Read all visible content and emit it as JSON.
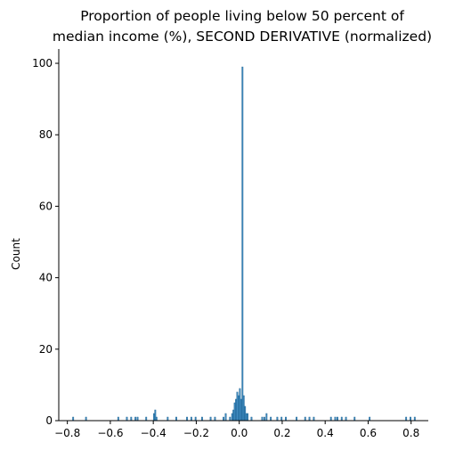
{
  "chart_data": {
    "type": "bar",
    "title_lines": [
      "Proportion of people living below 50 percent of",
      "median income (%), SECOND DERIVATIVE (normalized)"
    ],
    "xlabel": "",
    "ylabel": "Count",
    "xlim": [
      -0.84,
      0.88
    ],
    "ylim": [
      0,
      104
    ],
    "x_ticks": [
      {
        "value": -0.8,
        "label": "−0.8"
      },
      {
        "value": -0.6,
        "label": "−0.6"
      },
      {
        "value": -0.4,
        "label": "−0.4"
      },
      {
        "value": -0.2,
        "label": "−0.2"
      },
      {
        "value": 0.0,
        "label": "0.0"
      },
      {
        "value": 0.2,
        "label": "0.2"
      },
      {
        "value": 0.4,
        "label": "0.4"
      },
      {
        "value": 0.6,
        "label": "0.6"
      },
      {
        "value": 0.8,
        "label": "0.8"
      }
    ],
    "y_ticks": [
      {
        "value": 0,
        "label": "0"
      },
      {
        "value": 20,
        "label": "20"
      },
      {
        "value": 40,
        "label": "40"
      },
      {
        "value": 60,
        "label": "60"
      },
      {
        "value": 80,
        "label": "80"
      },
      {
        "value": 100,
        "label": "100"
      }
    ],
    "bar_color": "#1f77b4",
    "bar_edge_color": "#1a5f8f",
    "bins": [
      {
        "x0": -0.776,
        "x1": -0.77,
        "count": 1
      },
      {
        "x0": -0.716,
        "x1": -0.71,
        "count": 1
      },
      {
        "x0": -0.566,
        "x1": -0.56,
        "count": 1
      },
      {
        "x0": -0.526,
        "x1": -0.52,
        "count": 1
      },
      {
        "x0": -0.506,
        "x1": -0.5,
        "count": 1
      },
      {
        "x0": -0.486,
        "x1": -0.48,
        "count": 1
      },
      {
        "x0": -0.476,
        "x1": -0.47,
        "count": 1
      },
      {
        "x0": -0.436,
        "x1": -0.43,
        "count": 1
      },
      {
        "x0": -0.4,
        "x1": -0.394,
        "count": 2
      },
      {
        "x0": -0.394,
        "x1": -0.388,
        "count": 3
      },
      {
        "x0": -0.388,
        "x1": -0.382,
        "count": 1
      },
      {
        "x0": -0.336,
        "x1": -0.33,
        "count": 1
      },
      {
        "x0": -0.296,
        "x1": -0.29,
        "count": 1
      },
      {
        "x0": -0.246,
        "x1": -0.24,
        "count": 1
      },
      {
        "x0": -0.226,
        "x1": -0.22,
        "count": 1
      },
      {
        "x0": -0.206,
        "x1": -0.2,
        "count": 1
      },
      {
        "x0": -0.176,
        "x1": -0.17,
        "count": 1
      },
      {
        "x0": -0.136,
        "x1": -0.13,
        "count": 1
      },
      {
        "x0": -0.116,
        "x1": -0.11,
        "count": 1
      },
      {
        "x0": -0.076,
        "x1": -0.07,
        "count": 1
      },
      {
        "x0": -0.066,
        "x1": -0.06,
        "count": 2
      },
      {
        "x0": -0.046,
        "x1": -0.04,
        "count": 1
      },
      {
        "x0": -0.036,
        "x1": -0.03,
        "count": 2
      },
      {
        "x0": -0.03,
        "x1": -0.024,
        "count": 3
      },
      {
        "x0": -0.024,
        "x1": -0.018,
        "count": 5
      },
      {
        "x0": -0.018,
        "x1": -0.012,
        "count": 6
      },
      {
        "x0": -0.012,
        "x1": -0.006,
        "count": 8
      },
      {
        "x0": -0.006,
        "x1": 0.0,
        "count": 7
      },
      {
        "x0": 0.0,
        "x1": 0.006,
        "count": 9
      },
      {
        "x0": 0.006,
        "x1": 0.012,
        "count": 6
      },
      {
        "x0": 0.012,
        "x1": 0.018,
        "count": 99
      },
      {
        "x0": 0.018,
        "x1": 0.024,
        "count": 7
      },
      {
        "x0": 0.024,
        "x1": 0.03,
        "count": 4
      },
      {
        "x0": 0.03,
        "x1": 0.036,
        "count": 2
      },
      {
        "x0": 0.036,
        "x1": 0.042,
        "count": 2
      },
      {
        "x0": 0.054,
        "x1": 0.06,
        "count": 1
      },
      {
        "x0": 0.104,
        "x1": 0.11,
        "count": 1
      },
      {
        "x0": 0.114,
        "x1": 0.12,
        "count": 1
      },
      {
        "x0": 0.124,
        "x1": 0.13,
        "count": 2
      },
      {
        "x0": 0.144,
        "x1": 0.15,
        "count": 1
      },
      {
        "x0": 0.174,
        "x1": 0.18,
        "count": 1
      },
      {
        "x0": 0.194,
        "x1": 0.2,
        "count": 1
      },
      {
        "x0": 0.214,
        "x1": 0.22,
        "count": 1
      },
      {
        "x0": 0.264,
        "x1": 0.27,
        "count": 1
      },
      {
        "x0": 0.304,
        "x1": 0.31,
        "count": 1
      },
      {
        "x0": 0.324,
        "x1": 0.33,
        "count": 1
      },
      {
        "x0": 0.344,
        "x1": 0.35,
        "count": 1
      },
      {
        "x0": 0.424,
        "x1": 0.43,
        "count": 1
      },
      {
        "x0": 0.444,
        "x1": 0.45,
        "count": 1
      },
      {
        "x0": 0.454,
        "x1": 0.46,
        "count": 1
      },
      {
        "x0": 0.474,
        "x1": 0.48,
        "count": 1
      },
      {
        "x0": 0.494,
        "x1": 0.5,
        "count": 1
      },
      {
        "x0": 0.534,
        "x1": 0.54,
        "count": 1
      },
      {
        "x0": 0.604,
        "x1": 0.61,
        "count": 1
      },
      {
        "x0": 0.774,
        "x1": 0.78,
        "count": 1
      },
      {
        "x0": 0.794,
        "x1": 0.8,
        "count": 1
      },
      {
        "x0": 0.814,
        "x1": 0.82,
        "count": 1
      }
    ]
  }
}
